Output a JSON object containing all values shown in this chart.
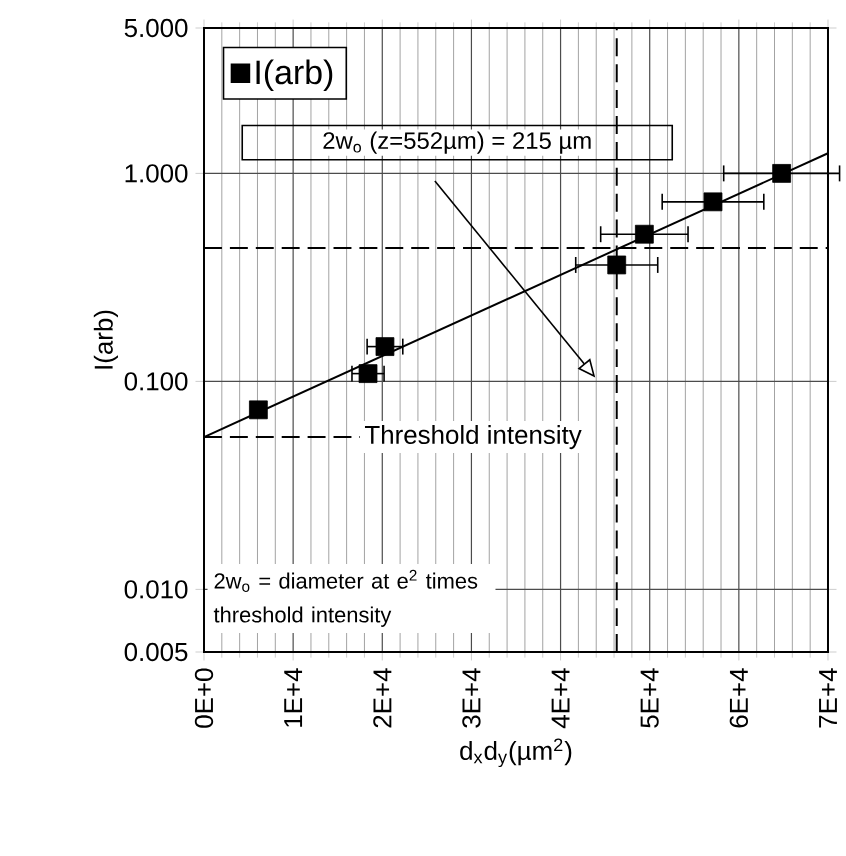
{
  "chart_data": {
    "type": "scatter",
    "xlabel": "d$_{x}$d$_{y}$(µm$^{2}$)",
    "ylabel": "I(arb)",
    "x": [
      6100,
      18400,
      20300,
      46300,
      49400,
      57100,
      64800
    ],
    "series": [
      {
        "name": "I(arb)",
        "color": "#000000",
        "values": [
          0.073,
          0.109,
          0.147,
          0.363,
          0.51,
          0.73,
          1.0
        ],
        "xerrors": [
          null,
          1800,
          2000,
          4600,
          4900,
          5700,
          6500
        ]
      },
      {
        "type": "line",
        "color": "#000000",
        "marker": "none",
        "x": [
          0,
          70000
        ],
        "values": [
          0.054,
          1.25
        ]
      }
    ],
    "xlim": [
      0,
      70000
    ],
    "xticks": [
      {
        "value": 0,
        "label": "0E+0"
      },
      {
        "value": 10000,
        "label": "1E+4"
      },
      {
        "value": 20000,
        "label": "2E+4"
      },
      {
        "value": 30000,
        "label": "3E+4"
      },
      {
        "value": 40000,
        "label": "4E+4"
      },
      {
        "value": 50000,
        "label": "5E+4"
      },
      {
        "value": 60000,
        "label": "6E+4"
      },
      {
        "value": 70000,
        "label": "7E+4"
      }
    ],
    "ylim": [
      0.005,
      5
    ],
    "yticks": [
      {
        "value": 0.005,
        "label": "0.005"
      },
      {
        "value": 0.01,
        "label": "0.010"
      },
      {
        "value": 0.1,
        "label": "0.100"
      },
      {
        "value": 1,
        "label": "1.000"
      },
      {
        "value": 5,
        "label": "5.000"
      }
    ],
    "log": "y",
    "grid": true,
    "legend": "top left",
    "marker": "square",
    "ref_lines": [
      {
        "axis": "y",
        "value": 0.438,
        "line_style": "dashed"
      },
      {
        "axis": "x",
        "value": 46300,
        "line_style": "dashed"
      },
      {
        "axis": "y",
        "value": 0.054,
        "line_style": "dashed",
        "label": "Threshold intensity"
      }
    ],
    "annotations": [
      "2w$_{o}$ (z=552µm) = 215 µm",
      "2w$_{o}$ = diameter at e$^{2}$ times threshold intensity"
    ]
  }
}
